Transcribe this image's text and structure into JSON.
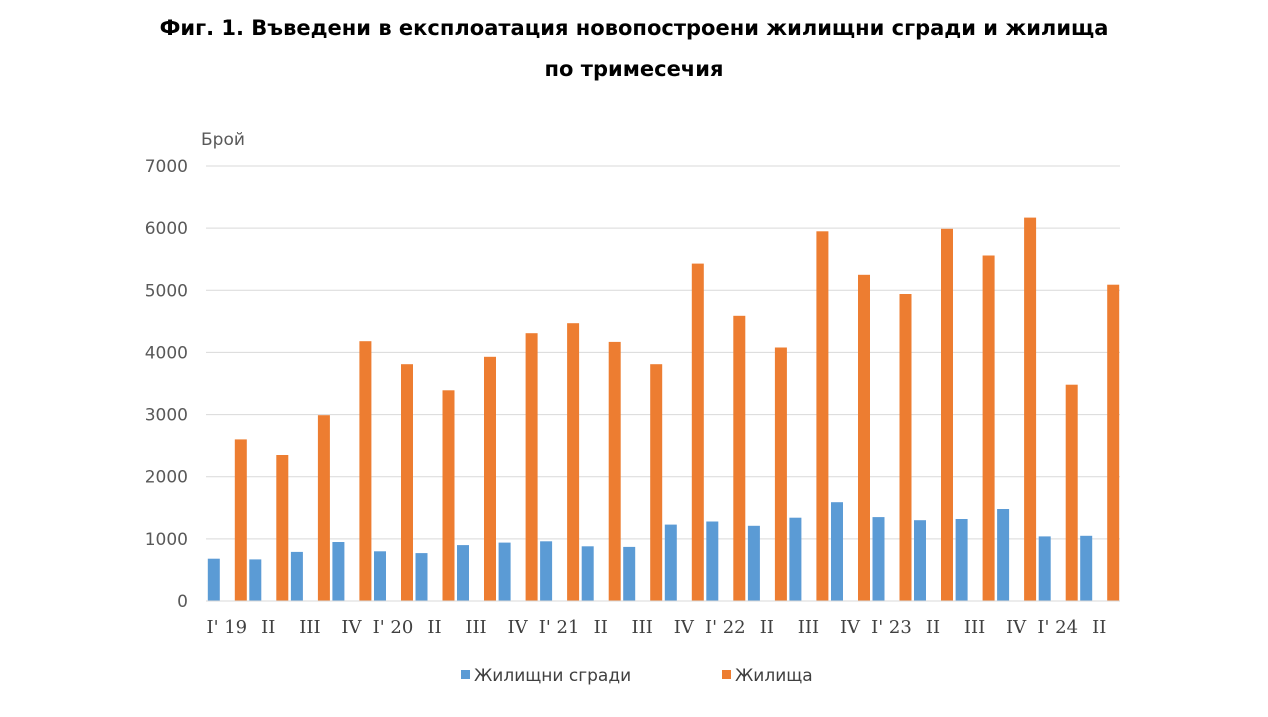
{
  "chart_data": {
    "type": "bar",
    "title_line1": "Фиг. 1. Въведени в експлоатация новопостроени жилищни сгради и жилища",
    "title_line2": "по тримесечия",
    "ylabel": "Брой",
    "xlabel": "",
    "ylim": [
      0,
      7000
    ],
    "yticks": [
      "0",
      "1000",
      "2000",
      "3000",
      "4000",
      "5000",
      "6000",
      "7000"
    ],
    "categories": [
      "I' 19",
      "II",
      "III",
      "IV",
      "I' 20",
      "II",
      "III",
      "IV",
      "I' 21",
      "II",
      "III",
      "IV",
      "I' 22",
      "II",
      "III",
      "IV",
      "I' 23",
      "II",
      "III",
      "IV",
      "I' 24",
      "II"
    ],
    "series": [
      {
        "name": "Жилищни сгради",
        "color": "#5B9BD5",
        "values": [
          680,
          670,
          790,
          950,
          800,
          770,
          900,
          940,
          960,
          880,
          870,
          1230,
          1280,
          1210,
          1340,
          1590,
          1350,
          1300,
          1320,
          1480,
          1040,
          1050
        ]
      },
      {
        "name": "Жилища",
        "color": "#ED7D31",
        "values": [
          2600,
          2350,
          2990,
          4180,
          3810,
          3390,
          3930,
          4310,
          4470,
          4170,
          3810,
          5430,
          4590,
          4080,
          5950,
          5250,
          4940,
          5990,
          5560,
          6170,
          3480,
          5090
        ]
      }
    ],
    "grid": true,
    "legend_position": "bottom"
  }
}
